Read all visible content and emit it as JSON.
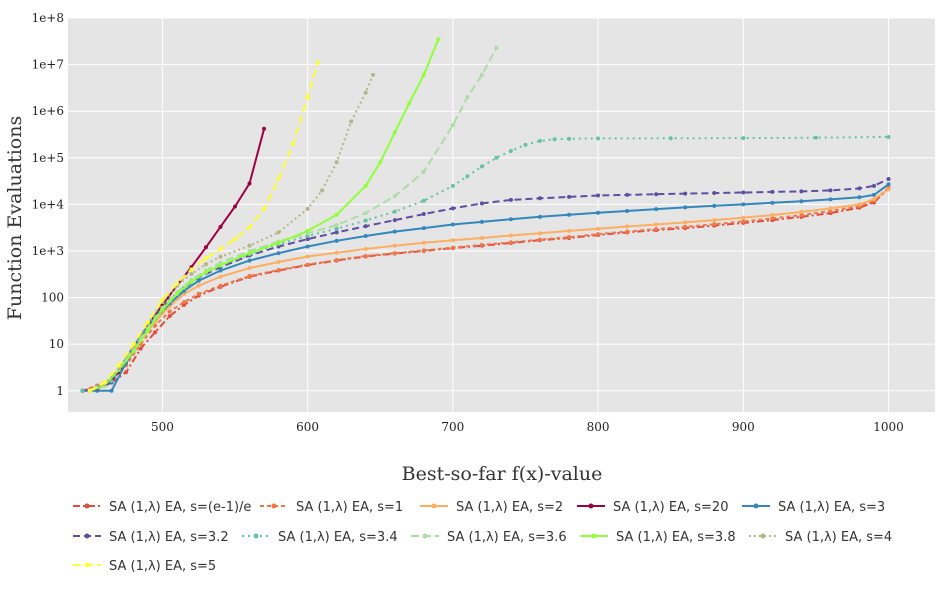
{
  "chart_data": {
    "type": "line",
    "title": "",
    "xlabel": "Best-so-far f(x)-value",
    "ylabel": "Function Evaluations",
    "xlim": [
      435,
      1032
    ],
    "ylim": [
      0.35,
      100000000
    ],
    "yscale": "log",
    "x_ticks": [
      500,
      600,
      700,
      800,
      900,
      1000
    ],
    "x_tick_labels": [
      "500",
      "600",
      "700",
      "800",
      "900",
      "1000"
    ],
    "y_ticks": [
      1,
      10,
      100,
      1000,
      10000,
      100000,
      1000000,
      10000000,
      100000000
    ],
    "y_tick_labels": [
      "1",
      "10",
      "100",
      "1e+3",
      "1e+4",
      "1e+5",
      "1e+6",
      "1e+7",
      "1e+8"
    ],
    "grid": true,
    "legend_position": "bottom",
    "series": [
      {
        "name": "SA (1,λ) EA, s=(e-1)/e",
        "color": "#e24a3c",
        "dash": "7,3,2,3",
        "x": [
          445,
          455,
          465,
          475,
          485,
          495,
          505,
          515,
          525,
          540,
          560,
          580,
          600,
          620,
          640,
          660,
          680,
          700,
          720,
          740,
          760,
          780,
          800,
          820,
          840,
          860,
          880,
          900,
          920,
          940,
          960,
          980,
          990,
          1000
        ],
        "y": [
          1,
          1.2,
          1.5,
          2.5,
          8,
          18,
          40,
          70,
          110,
          170,
          280,
          380,
          500,
          620,
          760,
          880,
          1000,
          1150,
          1300,
          1480,
          1700,
          1900,
          2200,
          2500,
          2800,
          3100,
          3500,
          4000,
          4600,
          5400,
          6500,
          8500,
          11000,
          22000
        ]
      },
      {
        "name": "SA (1,λ) EA, s=1",
        "color": "#f07848",
        "dash": "4,3",
        "x": [
          445,
          455,
          465,
          475,
          485,
          495,
          505,
          515,
          525,
          540,
          560,
          580,
          600,
          620,
          640,
          660,
          680,
          700,
          720,
          740,
          760,
          780,
          800,
          820,
          840,
          860,
          880,
          900,
          920,
          940,
          960,
          980,
          990,
          1000
        ],
        "y": [
          1,
          1.3,
          1.8,
          3.5,
          10,
          25,
          50,
          80,
          120,
          180,
          290,
          390,
          510,
          640,
          780,
          900,
          1030,
          1180,
          1350,
          1530,
          1750,
          1980,
          2300,
          2600,
          2950,
          3300,
          3750,
          4300,
          5000,
          5900,
          7200,
          9200,
          12000,
          23000
        ]
      },
      {
        "name": "SA (1,λ) EA, s=2",
        "color": "#fdae61",
        "dash": "",
        "x": [
          445,
          455,
          465,
          475,
          485,
          495,
          505,
          515,
          525,
          540,
          560,
          580,
          600,
          620,
          640,
          660,
          680,
          700,
          720,
          740,
          760,
          780,
          800,
          820,
          840,
          860,
          880,
          900,
          920,
          940,
          960,
          980,
          990,
          1000
        ],
        "y": [
          1,
          1.1,
          1.6,
          4,
          12,
          30,
          65,
          120,
          180,
          280,
          430,
          580,
          760,
          920,
          1100,
          1300,
          1500,
          1700,
          1900,
          2150,
          2400,
          2700,
          3000,
          3350,
          3700,
          4100,
          4600,
          5200,
          5900,
          6900,
          8200,
          10000,
          13000,
          21000
        ]
      },
      {
        "name": "SA (1,λ) EA, s=20",
        "color": "#9e0142",
        "dash": "",
        "x": [
          450,
          460,
          470,
          480,
          490,
          500,
          510,
          520,
          530,
          540,
          550,
          560,
          570
        ],
        "y": [
          1,
          1.3,
          2.5,
          7,
          25,
          70,
          180,
          450,
          1200,
          3300,
          9000,
          28000,
          420000
        ]
      },
      {
        "name": "SA (1,λ) EA, s=3",
        "color": "#3288bd",
        "dash": "",
        "x": [
          445,
          455,
          465,
          475,
          485,
          495,
          505,
          515,
          525,
          540,
          560,
          580,
          600,
          620,
          640,
          660,
          680,
          700,
          720,
          740,
          760,
          780,
          800,
          820,
          840,
          860,
          880,
          900,
          920,
          940,
          960,
          980,
          990,
          1000
        ],
        "y": [
          1,
          1,
          1,
          4,
          14,
          35,
          75,
          140,
          230,
          380,
          620,
          900,
          1250,
          1650,
          2100,
          2600,
          3100,
          3700,
          4200,
          4800,
          5400,
          6000,
          6600,
          7200,
          7900,
          8600,
          9300,
          10000,
          10800,
          11700,
          12800,
          14200,
          16000,
          27000
        ]
      },
      {
        "name": "SA (1,λ) EA, s=3.2",
        "color": "#5e4fa2",
        "dash": "7,4",
        "x": [
          445,
          455,
          465,
          475,
          485,
          495,
          505,
          515,
          525,
          540,
          560,
          580,
          600,
          620,
          640,
          660,
          680,
          700,
          720,
          740,
          760,
          780,
          800,
          820,
          840,
          860,
          880,
          900,
          920,
          940,
          960,
          980,
          990,
          1000
        ],
        "y": [
          1,
          1.1,
          1.5,
          5,
          15,
          40,
          90,
          160,
          270,
          450,
          800,
          1250,
          1800,
          2500,
          3400,
          4600,
          6200,
          8200,
          10500,
          12500,
          13500,
          14500,
          15500,
          16000,
          16500,
          17000,
          17500,
          18000,
          18500,
          19000,
          20000,
          22000,
          25000,
          35000
        ]
      },
      {
        "name": "SA (1,λ) EA, s=3.4",
        "color": "#66c2a5",
        "dash": "2,4",
        "x": [
          445,
          455,
          465,
          475,
          485,
          495,
          505,
          515,
          525,
          540,
          560,
          580,
          600,
          620,
          640,
          660,
          680,
          700,
          710,
          720,
          730,
          740,
          750,
          760,
          770,
          780,
          800,
          850,
          900,
          950,
          1000
        ],
        "y": [
          1,
          1.2,
          1.6,
          4.5,
          14,
          38,
          85,
          160,
          280,
          480,
          850,
          1400,
          2100,
          3000,
          4500,
          7000,
          12000,
          25000,
          40000,
          65000,
          100000,
          140000,
          190000,
          230000,
          250000,
          255000,
          260000,
          262000,
          265000,
          270000,
          280000
        ]
      },
      {
        "name": "SA (1,λ) EA, s=3.6",
        "color": "#abdda4",
        "dash": "8,4",
        "x": [
          450,
          460,
          470,
          480,
          490,
          500,
          510,
          520,
          530,
          540,
          560,
          580,
          600,
          620,
          640,
          660,
          680,
          700,
          710,
          720,
          730
        ],
        "y": [
          1,
          1.4,
          3,
          8,
          22,
          60,
          130,
          240,
          380,
          560,
          1000,
          1600,
          2400,
          3600,
          6500,
          15000,
          50000,
          500000,
          2000000,
          6000000,
          23000000
        ]
      },
      {
        "name": "SA (1,λ) EA, s=3.8",
        "color": "#8fff3a",
        "dash": "",
        "x": [
          450,
          460,
          470,
          480,
          490,
          500,
          510,
          520,
          530,
          540,
          560,
          580,
          600,
          620,
          640,
          650,
          660,
          670,
          680,
          690
        ],
        "y": [
          1,
          1.3,
          2.8,
          7,
          20,
          55,
          120,
          220,
          350,
          500,
          900,
          1500,
          2700,
          6000,
          25000,
          80000,
          350000,
          1500000,
          6000000,
          35000000
        ]
      },
      {
        "name": "SA (1,λ) EA, s=4",
        "color": "#b5b686",
        "dash": "2,3",
        "x": [
          450,
          460,
          470,
          480,
          490,
          500,
          510,
          520,
          530,
          540,
          560,
          580,
          600,
          610,
          620,
          630,
          640,
          645
        ],
        "y": [
          1,
          1.4,
          3,
          9,
          28,
          80,
          180,
          320,
          520,
          750,
          1300,
          2500,
          8000,
          20000,
          80000,
          600000,
          2500000,
          6000000
        ]
      },
      {
        "name": "SA (1,λ) EA, s=5",
        "color": "#ffff33",
        "dash": "8,4",
        "x": [
          450,
          460,
          470,
          480,
          490,
          500,
          510,
          520,
          530,
          540,
          550,
          560,
          570,
          580,
          590,
          600,
          607
        ],
        "y": [
          1,
          1.5,
          3.5,
          10,
          30,
          90,
          200,
          400,
          700,
          1100,
          1800,
          3200,
          8000,
          35000,
          200000,
          2000000,
          11000000
        ]
      }
    ]
  }
}
